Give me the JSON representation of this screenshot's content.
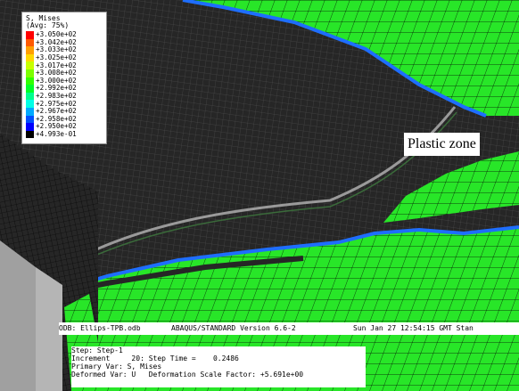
{
  "legend": {
    "title_line1": "S, Mises",
    "title_line2": "(Avg: 75%)",
    "entries": [
      {
        "value": "+3.050e+02",
        "color": "#ff0000"
      },
      {
        "value": "+3.042e+02",
        "color": "#ff5a00"
      },
      {
        "value": "+3.033e+02",
        "color": "#ff9f00"
      },
      {
        "value": "+3.025e+02",
        "color": "#ffd800"
      },
      {
        "value": "+3.017e+02",
        "color": "#c8ff00"
      },
      {
        "value": "+3.008e+02",
        "color": "#7cff00"
      },
      {
        "value": "+3.000e+02",
        "color": "#32ff00"
      },
      {
        "value": "+2.992e+02",
        "color": "#00ff28"
      },
      {
        "value": "+2.983e+02",
        "color": "#00ff8c"
      },
      {
        "value": "+2.975e+02",
        "color": "#00ffe6"
      },
      {
        "value": "+2.967e+02",
        "color": "#00aaff"
      },
      {
        "value": "+2.958e+02",
        "color": "#0050ff"
      },
      {
        "value": "+2.950e+02",
        "color": "#0000ff"
      },
      {
        "value": "+4.993e-01",
        "color": "#000000"
      }
    ]
  },
  "callout": {
    "label": "Plastic zone"
  },
  "status": {
    "odb": "ODB: Ellips-TPB.odb",
    "solver": "ABAQUS/STANDARD Version 6.6-2",
    "date": "Sun Jan 27 12:54:15 GMT Stan",
    "step": "Step: Step-1",
    "increment": "Increment     20: Step Time =    0.2486",
    "primary": "Primary Var: S, Mises",
    "deformed": "Deformed Var: U   Deformation Scale Factor: +5.691e+00"
  },
  "colors": {
    "green": "#28e628",
    "dark": "#262626",
    "mesh": "#000000",
    "blue": "#1e6eff"
  }
}
